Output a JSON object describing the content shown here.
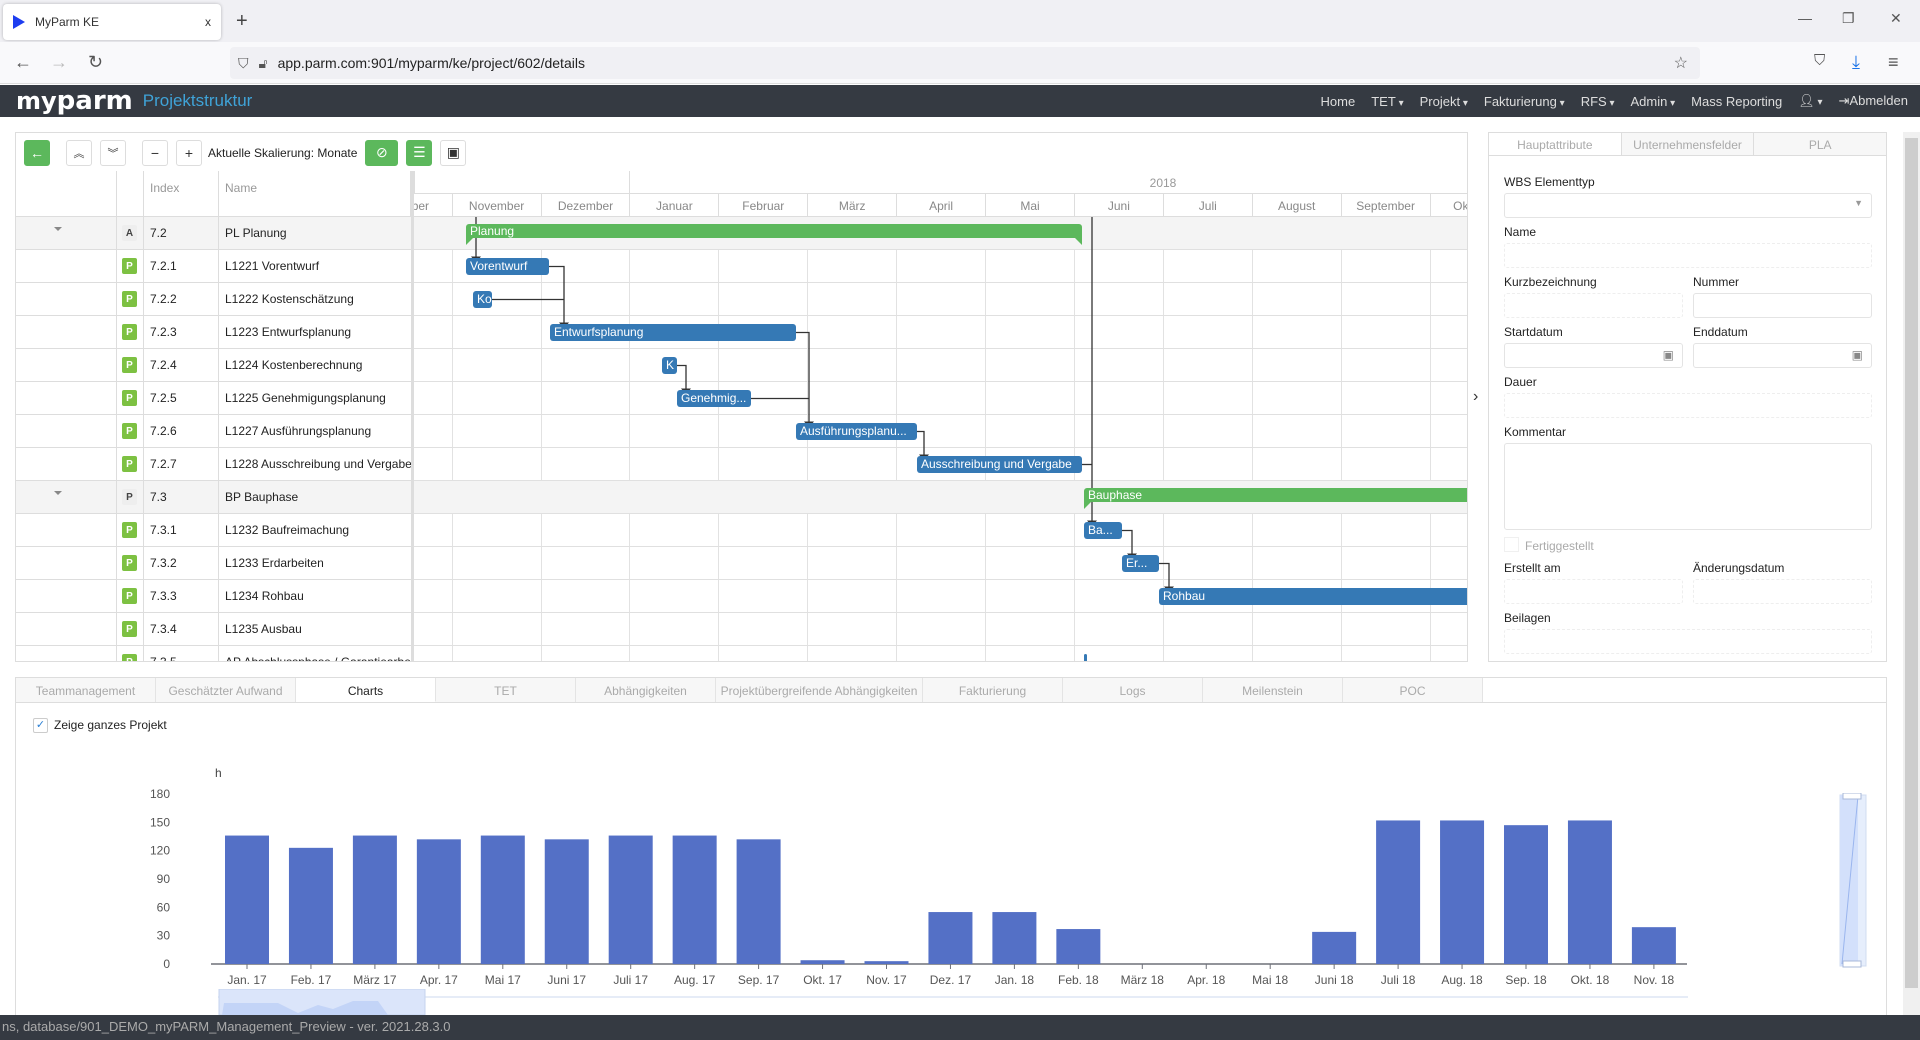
{
  "browser": {
    "tab_title": "MyParm KE",
    "tab_close": "x",
    "new_tab": "+",
    "url": "app.parm.com:901/myparm/ke/project/602/details"
  },
  "app": {
    "logo": "myparm",
    "title": "Projektstruktur",
    "nav": [
      {
        "label": "Home",
        "dropdown": false
      },
      {
        "label": "TET",
        "dropdown": true
      },
      {
        "label": "Projekt",
        "dropdown": true
      },
      {
        "label": "Fakturierung",
        "dropdown": true
      },
      {
        "label": "RFS",
        "dropdown": true
      },
      {
        "label": "Admin",
        "dropdown": true
      },
      {
        "label": "Mass Reporting",
        "dropdown": false
      }
    ],
    "logout": "Abmelden"
  },
  "gantt": {
    "scale_label": "Aktuelle Skalierung: Monate",
    "columns": {
      "index": "Index",
      "name": "Name"
    },
    "year": "2018",
    "months": [
      "Oktober",
      "November",
      "Dezember",
      "Januar",
      "Februar",
      "März",
      "April",
      "Mai",
      "Juni",
      "Juli",
      "August",
      "September",
      "Oktober"
    ],
    "rows": [
      {
        "badge": "A",
        "index": "7.2",
        "name": "PL Planung",
        "group": true
      },
      {
        "badge": "P",
        "index": "7.2.1",
        "name": "L1221 Vorentwurf",
        "group": false
      },
      {
        "badge": "P",
        "index": "7.2.2",
        "name": "L1222 Kostenschätzung",
        "group": false
      },
      {
        "badge": "P",
        "index": "7.2.3",
        "name": "L1223 Entwurfsplanung",
        "group": false
      },
      {
        "badge": "P",
        "index": "7.2.4",
        "name": "L1224 Kostenberechnung",
        "group": false
      },
      {
        "badge": "P",
        "index": "7.2.5",
        "name": "L1225 Genehmigungsplanung",
        "group": false
      },
      {
        "badge": "P",
        "index": "7.2.6",
        "name": "L1227 Ausführungsplanung",
        "group": false
      },
      {
        "badge": "P",
        "index": "7.2.7",
        "name": "L1228 Ausschreibung und Vergabe",
        "group": false
      },
      {
        "badge": "P",
        "index": "7.3",
        "name": "BP Bauphase",
        "group": true
      },
      {
        "badge": "P",
        "index": "7.3.1",
        "name": "L1232 Baufreimachung",
        "group": false
      },
      {
        "badge": "P",
        "index": "7.3.2",
        "name": "L1233 Erdarbeiten",
        "group": false
      },
      {
        "badge": "P",
        "index": "7.3.3",
        "name": "L1234 Rohbau",
        "group": false
      },
      {
        "badge": "P",
        "index": "7.3.4",
        "name": "L1235 Ausbau",
        "group": false
      },
      {
        "badge": "P",
        "index": "7.3.5",
        "name": "AP Abschlussphase / Garantiearbe",
        "group": false
      }
    ],
    "bars": [
      "Planung",
      "Vorentwurf",
      "Ko",
      "Entwurfsplanung",
      "K",
      "Genehmig...",
      "Ausführungsplanu...",
      "Ausschreibung und Vergabe",
      "Bauphase",
      "Ba...",
      "Er...",
      "Rohbau"
    ]
  },
  "props": {
    "tabs": [
      "Hauptattribute",
      "Unternehmensfelder",
      "PLA"
    ],
    "wbs_type": "WBS Elementtyp",
    "name": "Name",
    "short": "Kurzbezeichnung",
    "number": "Nummer",
    "start": "Startdatum",
    "end": "Enddatum",
    "duration": "Dauer",
    "comment": "Kommentar",
    "done": "Fertiggestellt",
    "created": "Erstellt am",
    "changed": "Änderungsdatum",
    "attachments": "Beilagen"
  },
  "bottom": {
    "tabs": [
      "Teammanagement",
      "Geschätzter Aufwand",
      "Charts",
      "TET",
      "Abhängigkeiten",
      "Projektübergreifende Abhängigkeiten",
      "Fakturierung",
      "Logs",
      "Meilenstein",
      "POC"
    ],
    "active_tab": "Charts",
    "show_whole_project": "Zeige ganzes Projekt",
    "show_whole_project_checked": true
  },
  "chart_data": {
    "type": "bar",
    "ylabel": "h",
    "ylim": [
      0,
      180
    ],
    "yticks": [
      0,
      30,
      60,
      90,
      120,
      150,
      180
    ],
    "categories": [
      "Jan. 17",
      "Feb. 17",
      "März 17",
      "Apr. 17",
      "Mai 17",
      "Juni 17",
      "Juli 17",
      "Aug. 17",
      "Sep. 17",
      "Okt. 17",
      "Nov. 17",
      "Dez. 17",
      "Jan. 18",
      "Feb. 18",
      "März 18",
      "Apr. 18",
      "Mai 18",
      "Juni 18",
      "Juli 18",
      "Aug. 18",
      "Sep. 18",
      "Okt. 18",
      "Nov. 18"
    ],
    "values": [
      136,
      123,
      136,
      132,
      136,
      132,
      136,
      136,
      132,
      4,
      3,
      55,
      55,
      37,
      0,
      0,
      0,
      34,
      152,
      152,
      147,
      152,
      39
    ],
    "color": "#5470c6",
    "grid": false
  },
  "footer": "ns, database/901_DEMO_myPARM_Management_Preview - ver. 2021.28.3.0"
}
